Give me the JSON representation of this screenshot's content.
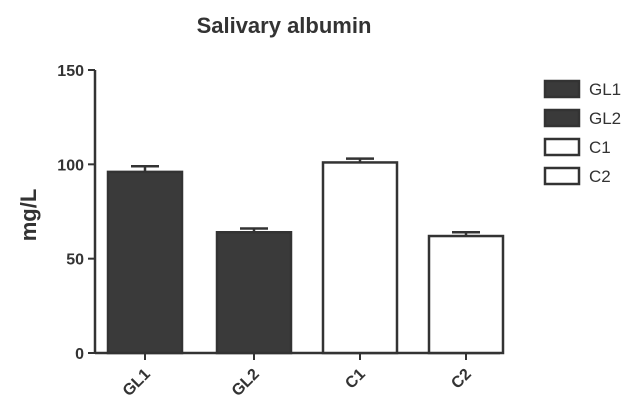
{
  "chart_data": {
    "type": "bar",
    "title": "Salivary albumin",
    "xlabel": "",
    "ylabel": "mg/L",
    "ylim": [
      0,
      150
    ],
    "yticks": [
      0,
      50,
      100,
      150
    ],
    "categories": [
      "GL1",
      "GL2",
      "C1",
      "C2"
    ],
    "values": [
      96,
      64,
      101,
      62
    ],
    "errors": [
      3,
      2,
      2,
      2
    ],
    "fills": [
      "#3a3a3a",
      "#3a3a3a",
      "#ffffff",
      "#ffffff"
    ],
    "legend": {
      "position": "right",
      "entries": [
        {
          "label": "GL1",
          "fill": "#3a3a3a"
        },
        {
          "label": "GL2",
          "fill": "#3a3a3a"
        },
        {
          "label": "C1",
          "fill": "#ffffff"
        },
        {
          "label": "C2",
          "fill": "#ffffff"
        }
      ]
    },
    "grid": false
  }
}
